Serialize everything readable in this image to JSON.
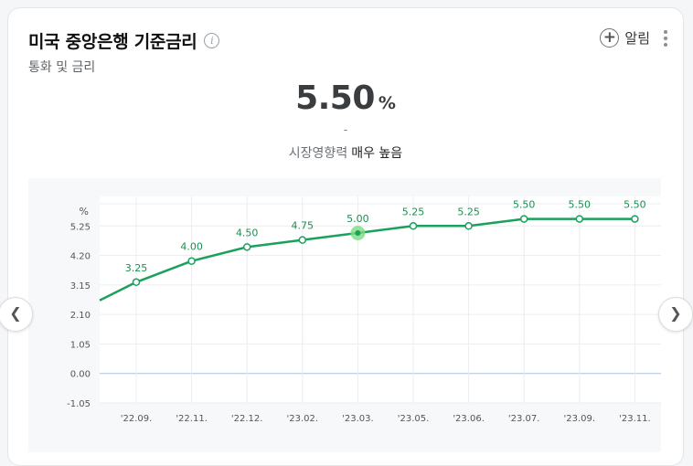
{
  "header": {
    "title": "미국 중앙은행 기준금리",
    "subtitle": "통화 및 금리",
    "alarm_label": "알림"
  },
  "summary": {
    "value": "5.50",
    "unit": "%",
    "change": "-",
    "impact_label": "시장영향력",
    "impact_value": "매우 높음"
  },
  "colors": {
    "line": "#1aa15b",
    "highlight": "#7ddc85",
    "zero_line": "#a9c4df",
    "grid": "#eaedf0"
  },
  "nav": {
    "prev_icon": "chevron-left-icon",
    "next_icon": "chevron-right-icon"
  },
  "chart_data": {
    "type": "line",
    "y_unit_label": "%",
    "yticks": [
      "5.25",
      "4.20",
      "3.15",
      "2.10",
      "1.05",
      "0.00",
      "-1.05"
    ],
    "ylim": [
      -1.05,
      6.3
    ],
    "categories": [
      "'22.09.",
      "'22.11.",
      "'22.12.",
      "'23.02.",
      "'23.03.",
      "'23.05.",
      "'23.06.",
      "'23.07.",
      "'23.09.",
      "'23.11."
    ],
    "series": [
      {
        "values": [
          3.25,
          4.0,
          4.5,
          4.75,
          5.0,
          5.25,
          5.25,
          5.5,
          5.5,
          5.5
        ],
        "labels": [
          "3.25",
          "4.00",
          "4.50",
          "4.75",
          "5.00",
          "5.25",
          "5.25",
          "5.50",
          "5.50",
          "5.50"
        ]
      }
    ],
    "lead_in_value": 2.6,
    "highlight_index": 4,
    "grid": true
  }
}
